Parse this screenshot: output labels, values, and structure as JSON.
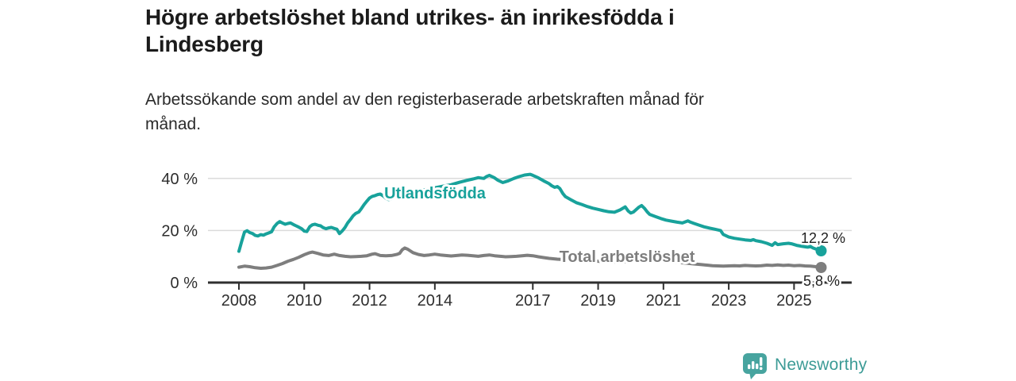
{
  "header": {
    "title_line1": "Högre arbetslöshet bland utrikes- än inrikesfödda i",
    "title_line2": "Lindesberg",
    "subtitle_line1": "Arbetssökande som andel av den registerbaserade arbetskraften månad för",
    "subtitle_line2": "månad."
  },
  "chart_data": {
    "type": "line",
    "title": "Högre arbetslöshet bland utrikes- än inrikesfödda i Lindesberg",
    "subtitle": "Arbetssökande som andel av den registerbaserade arbetskraften månad för månad.",
    "grid": "horizontal-only",
    "legend_position": "inline-on-lines",
    "x_axis": {
      "ticks": [
        2008,
        2010,
        2012,
        2014,
        2017,
        2019,
        2021,
        2023,
        2025
      ],
      "domain": [
        2008.0,
        2025.83
      ]
    },
    "y_axis": {
      "unit": "%",
      "range": [
        0,
        45
      ],
      "ticks": [
        {
          "value": 0,
          "label": "0 %"
        },
        {
          "value": 20,
          "label": "20 %"
        },
        {
          "value": 40,
          "label": "40 %"
        }
      ]
    },
    "series": [
      {
        "id": "utlandsfodda",
        "name": "Utlandsfödda",
        "color": "#18a29b",
        "end_label": "12,2 %",
        "end_value": 12.2,
        "points": [
          [
            2008.0,
            12.0
          ],
          [
            2008.08,
            15.6
          ],
          [
            2008.17,
            19.4
          ],
          [
            2008.25,
            19.9
          ],
          [
            2008.33,
            19.2
          ],
          [
            2008.42,
            18.8
          ],
          [
            2008.5,
            18.1
          ],
          [
            2008.58,
            17.9
          ],
          [
            2008.67,
            18.4
          ],
          [
            2008.75,
            18.2
          ],
          [
            2008.83,
            18.7
          ],
          [
            2008.92,
            19.1
          ],
          [
            2009.0,
            19.5
          ],
          [
            2009.08,
            21.4
          ],
          [
            2009.17,
            22.7
          ],
          [
            2009.25,
            23.4
          ],
          [
            2009.33,
            22.9
          ],
          [
            2009.42,
            22.4
          ],
          [
            2009.5,
            22.7
          ],
          [
            2009.58,
            22.9
          ],
          [
            2009.67,
            22.3
          ],
          [
            2009.75,
            21.8
          ],
          [
            2009.83,
            21.3
          ],
          [
            2009.92,
            20.7
          ],
          [
            2010.0,
            19.8
          ],
          [
            2010.08,
            19.6
          ],
          [
            2010.17,
            21.5
          ],
          [
            2010.25,
            22.2
          ],
          [
            2010.33,
            22.4
          ],
          [
            2010.42,
            22.0
          ],
          [
            2010.5,
            21.8
          ],
          [
            2010.58,
            21.1
          ],
          [
            2010.67,
            20.7
          ],
          [
            2010.75,
            21.0
          ],
          [
            2010.83,
            21.2
          ],
          [
            2010.92,
            20.8
          ],
          [
            2011.0,
            20.5
          ],
          [
            2011.08,
            18.8
          ],
          [
            2011.17,
            19.9
          ],
          [
            2011.25,
            21.2
          ],
          [
            2011.33,
            22.9
          ],
          [
            2011.42,
            24.3
          ],
          [
            2011.5,
            25.7
          ],
          [
            2011.58,
            26.6
          ],
          [
            2011.67,
            27.1
          ],
          [
            2011.75,
            28.4
          ],
          [
            2011.83,
            29.9
          ],
          [
            2011.92,
            31.3
          ],
          [
            2012.0,
            32.5
          ],
          [
            2012.08,
            33.1
          ],
          [
            2012.17,
            33.4
          ],
          [
            2012.25,
            33.8
          ],
          [
            2012.33,
            34.0
          ],
          [
            2012.42,
            33.3
          ],
          [
            2012.5,
            32.4
          ],
          [
            2012.58,
            31.9
          ],
          [
            2012.67,
            32.1
          ],
          [
            2012.75,
            32.7
          ],
          [
            2012.83,
            33.2
          ],
          [
            2013.0,
            33.9
          ],
          [
            2013.25,
            34.5
          ],
          [
            2013.5,
            35.2
          ],
          [
            2013.75,
            35.8
          ],
          [
            2014.0,
            36.4
          ],
          [
            2014.25,
            37.0
          ],
          [
            2014.5,
            37.6
          ],
          [
            2014.75,
            38.5
          ],
          [
            2015.0,
            39.3
          ],
          [
            2015.17,
            39.8
          ],
          [
            2015.33,
            40.3
          ],
          [
            2015.5,
            40.0
          ],
          [
            2015.58,
            40.7
          ],
          [
            2015.67,
            41.2
          ],
          [
            2015.83,
            40.2
          ],
          [
            2015.92,
            39.4
          ],
          [
            2016.08,
            38.4
          ],
          [
            2016.25,
            39.1
          ],
          [
            2016.42,
            40.0
          ],
          [
            2016.58,
            40.7
          ],
          [
            2016.75,
            41.3
          ],
          [
            2016.92,
            41.6
          ],
          [
            2017.0,
            41.2
          ],
          [
            2017.17,
            40.2
          ],
          [
            2017.33,
            39.1
          ],
          [
            2017.5,
            38.0
          ],
          [
            2017.58,
            37.2
          ],
          [
            2017.67,
            36.6
          ],
          [
            2017.75,
            36.9
          ],
          [
            2017.83,
            36.1
          ],
          [
            2017.92,
            34.2
          ],
          [
            2018.0,
            33.0
          ],
          [
            2018.17,
            31.8
          ],
          [
            2018.33,
            30.7
          ],
          [
            2018.5,
            30.0
          ],
          [
            2018.67,
            29.2
          ],
          [
            2018.83,
            28.6
          ],
          [
            2019.0,
            28.1
          ],
          [
            2019.17,
            27.6
          ],
          [
            2019.33,
            27.2
          ],
          [
            2019.5,
            27.0
          ],
          [
            2019.67,
            27.9
          ],
          [
            2019.83,
            29.1
          ],
          [
            2019.92,
            27.5
          ],
          [
            2020.0,
            26.7
          ],
          [
            2020.08,
            27.1
          ],
          [
            2020.25,
            29.0
          ],
          [
            2020.33,
            29.6
          ],
          [
            2020.42,
            28.5
          ],
          [
            2020.5,
            27.2
          ],
          [
            2020.58,
            26.2
          ],
          [
            2020.75,
            25.4
          ],
          [
            2020.92,
            24.6
          ],
          [
            2021.08,
            24.0
          ],
          [
            2021.25,
            23.6
          ],
          [
            2021.42,
            23.2
          ],
          [
            2021.58,
            22.9
          ],
          [
            2021.75,
            23.7
          ],
          [
            2021.83,
            23.2
          ],
          [
            2021.92,
            22.8
          ],
          [
            2022.08,
            22.1
          ],
          [
            2022.25,
            21.4
          ],
          [
            2022.42,
            20.9
          ],
          [
            2022.58,
            20.5
          ],
          [
            2022.75,
            20.0
          ],
          [
            2022.83,
            18.5
          ],
          [
            2023.0,
            17.5
          ],
          [
            2023.17,
            17.0
          ],
          [
            2023.33,
            16.7
          ],
          [
            2023.5,
            16.4
          ],
          [
            2023.67,
            16.2
          ],
          [
            2023.75,
            16.5
          ],
          [
            2023.83,
            16.1
          ],
          [
            2024.0,
            15.7
          ],
          [
            2024.17,
            15.1
          ],
          [
            2024.33,
            14.3
          ],
          [
            2024.42,
            15.3
          ],
          [
            2024.5,
            14.6
          ],
          [
            2024.67,
            14.9
          ],
          [
            2024.83,
            15.1
          ],
          [
            2024.92,
            14.9
          ],
          [
            2025.08,
            14.3
          ],
          [
            2025.25,
            13.9
          ],
          [
            2025.42,
            13.6
          ],
          [
            2025.5,
            13.9
          ],
          [
            2025.58,
            13.3
          ],
          [
            2025.67,
            12.9
          ],
          [
            2025.83,
            12.2
          ]
        ]
      },
      {
        "id": "total",
        "name": "Total arbetslöshet",
        "color": "#7e7e7e",
        "end_label": "5,8 %",
        "end_value": 5.8,
        "points": [
          [
            2008.0,
            5.9
          ],
          [
            2008.17,
            6.3
          ],
          [
            2008.33,
            6.1
          ],
          [
            2008.5,
            5.7
          ],
          [
            2008.67,
            5.5
          ],
          [
            2008.83,
            5.6
          ],
          [
            2009.0,
            5.9
          ],
          [
            2009.17,
            6.6
          ],
          [
            2009.33,
            7.3
          ],
          [
            2009.5,
            8.2
          ],
          [
            2009.67,
            8.9
          ],
          [
            2009.83,
            9.7
          ],
          [
            2010.0,
            10.7
          ],
          [
            2010.17,
            11.5
          ],
          [
            2010.25,
            11.7
          ],
          [
            2010.42,
            11.2
          ],
          [
            2010.58,
            10.6
          ],
          [
            2010.75,
            10.4
          ],
          [
            2010.92,
            10.9
          ],
          [
            2011.08,
            10.4
          ],
          [
            2011.25,
            10.1
          ],
          [
            2011.42,
            9.9
          ],
          [
            2011.58,
            10.0
          ],
          [
            2011.75,
            10.1
          ],
          [
            2011.92,
            10.3
          ],
          [
            2012.08,
            10.9
          ],
          [
            2012.17,
            11.1
          ],
          [
            2012.33,
            10.4
          ],
          [
            2012.5,
            10.3
          ],
          [
            2012.67,
            10.4
          ],
          [
            2012.83,
            10.8
          ],
          [
            2012.92,
            11.2
          ],
          [
            2013.0,
            12.6
          ],
          [
            2013.08,
            13.3
          ],
          [
            2013.17,
            12.8
          ],
          [
            2013.33,
            11.5
          ],
          [
            2013.5,
            10.8
          ],
          [
            2013.67,
            10.4
          ],
          [
            2013.83,
            10.6
          ],
          [
            2014.0,
            10.9
          ],
          [
            2014.17,
            10.6
          ],
          [
            2014.33,
            10.4
          ],
          [
            2014.5,
            10.2
          ],
          [
            2014.67,
            10.4
          ],
          [
            2014.83,
            10.6
          ],
          [
            2015.0,
            10.5
          ],
          [
            2015.17,
            10.3
          ],
          [
            2015.33,
            10.1
          ],
          [
            2015.5,
            10.4
          ],
          [
            2015.67,
            10.6
          ],
          [
            2015.83,
            10.3
          ],
          [
            2016.0,
            10.1
          ],
          [
            2016.17,
            9.9
          ],
          [
            2016.33,
            10.0
          ],
          [
            2016.5,
            10.1
          ],
          [
            2016.67,
            10.3
          ],
          [
            2016.83,
            10.5
          ],
          [
            2017.0,
            10.3
          ],
          [
            2017.17,
            9.9
          ],
          [
            2017.33,
            9.6
          ],
          [
            2017.5,
            9.3
          ],
          [
            2017.75,
            9.0
          ],
          [
            2018.0,
            8.8
          ],
          [
            2018.25,
            8.6
          ],
          [
            2018.5,
            8.4
          ],
          [
            2018.75,
            8.3
          ],
          [
            2019.0,
            8.2
          ],
          [
            2019.25,
            8.0
          ],
          [
            2019.5,
            7.9
          ],
          [
            2019.75,
            8.0
          ],
          [
            2020.0,
            8.2
          ],
          [
            2020.25,
            8.9
          ],
          [
            2020.42,
            9.3
          ],
          [
            2020.58,
            9.1
          ],
          [
            2020.75,
            8.8
          ],
          [
            2021.0,
            8.4
          ],
          [
            2021.25,
            8.0
          ],
          [
            2021.5,
            7.7
          ],
          [
            2021.75,
            7.4
          ],
          [
            2022.0,
            7.1
          ],
          [
            2022.17,
            6.9
          ],
          [
            2022.33,
            6.7
          ],
          [
            2022.5,
            6.5
          ],
          [
            2022.67,
            6.4
          ],
          [
            2022.83,
            6.3
          ],
          [
            2023.0,
            6.4
          ],
          [
            2023.17,
            6.5
          ],
          [
            2023.33,
            6.4
          ],
          [
            2023.5,
            6.6
          ],
          [
            2023.67,
            6.5
          ],
          [
            2023.83,
            6.4
          ],
          [
            2024.0,
            6.5
          ],
          [
            2024.17,
            6.7
          ],
          [
            2024.33,
            6.6
          ],
          [
            2024.5,
            6.8
          ],
          [
            2024.67,
            6.6
          ],
          [
            2024.83,
            6.7
          ],
          [
            2025.0,
            6.5
          ],
          [
            2025.17,
            6.6
          ],
          [
            2025.33,
            6.4
          ],
          [
            2025.5,
            6.3
          ],
          [
            2025.67,
            6.1
          ],
          [
            2025.83,
            5.8
          ]
        ]
      }
    ]
  },
  "footer": {
    "brand": "Newsworthy",
    "brand_color": "#3c9b96",
    "logo_color": "#47a49f"
  }
}
